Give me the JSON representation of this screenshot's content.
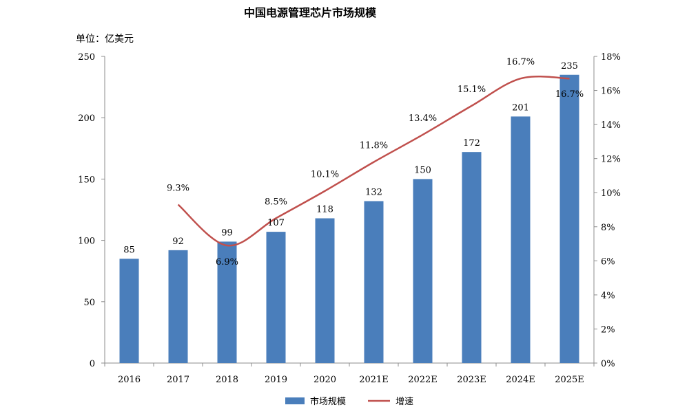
{
  "chart_data": {
    "type": "bar",
    "title": "中国电源管理芯片市场规模",
    "unit_label": "单位：亿美元",
    "categories": [
      "2016",
      "2017",
      "2018",
      "2019",
      "2020",
      "2021E",
      "2022E",
      "2023E",
      "2024E",
      "2025E"
    ],
    "series": [
      {
        "name": "市场规模",
        "type": "bar",
        "axis": "left",
        "color": "#4a7ebb",
        "values": [
          85,
          92,
          99,
          107,
          118,
          132,
          150,
          172,
          201,
          235
        ],
        "labels": [
          "85",
          "92",
          "99",
          "107",
          "118",
          "132",
          "150",
          "172",
          "201",
          "235"
        ]
      },
      {
        "name": "增速",
        "type": "line",
        "axis": "right",
        "color": "#c0504d",
        "values": [
          null,
          9.3,
          6.9,
          8.5,
          10.1,
          11.8,
          13.4,
          15.1,
          16.7,
          16.7
        ],
        "labels": [
          "",
          "9.3%",
          "6.9%",
          "8.5%",
          "10.1%",
          "11.8%",
          "13.4%",
          "15.1%",
          "16.7%",
          "16.7%"
        ]
      }
    ],
    "y_left": {
      "min": 0,
      "max": 250,
      "ticks": [
        "0",
        "50",
        "100",
        "150",
        "200",
        "250"
      ]
    },
    "y_right": {
      "min": 0,
      "max": 18,
      "ticks": [
        "0%",
        "2%",
        "4%",
        "6%",
        "8%",
        "10%",
        "12%",
        "14%",
        "16%",
        "18%"
      ]
    },
    "grid": false,
    "legend_position": "bottom"
  }
}
